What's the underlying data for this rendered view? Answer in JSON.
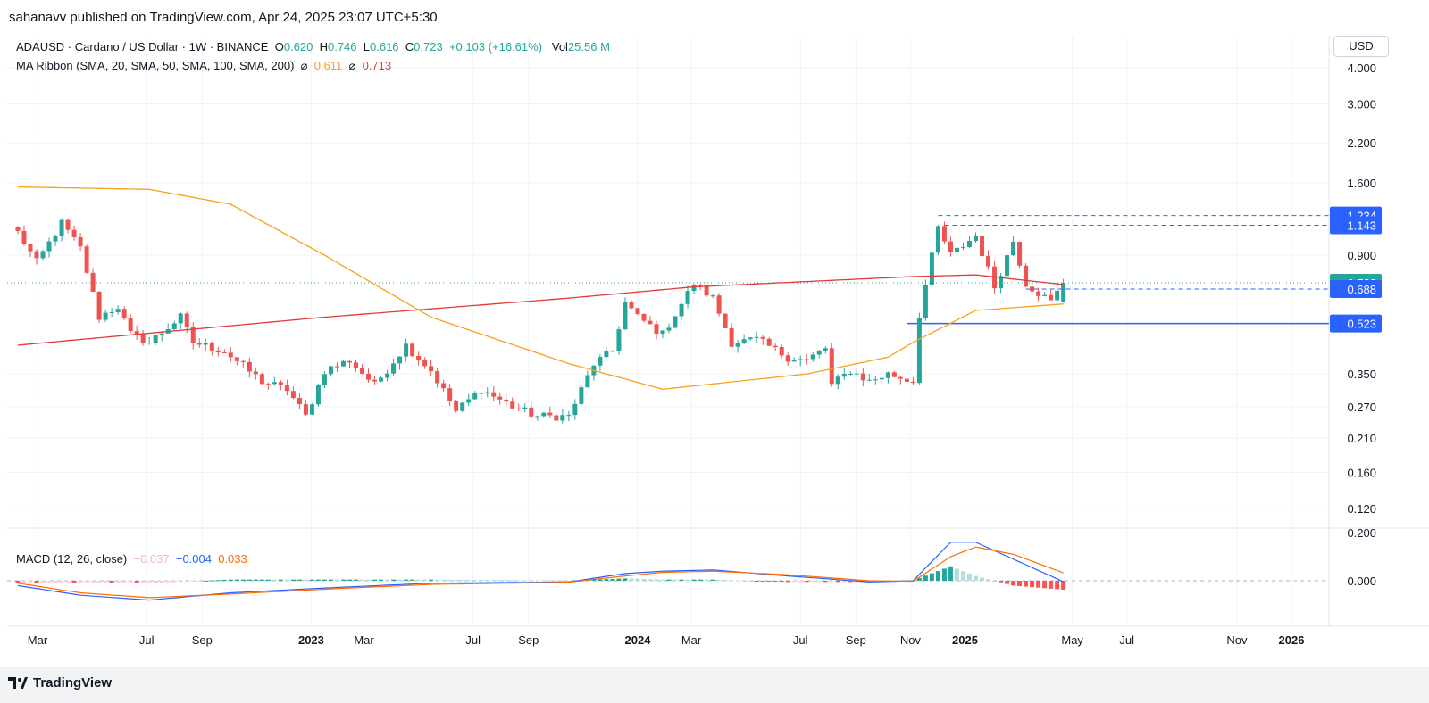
{
  "publish": {
    "text": "sahanavv published on TradingView.com, Apr 24, 2025 23:07 UTC+5:30"
  },
  "legend": {
    "symbol": "ADAUSD · Cardano / US Dollar · 1W · BINANCE",
    "o_label": "O",
    "o": "0.620",
    "h_label": "H",
    "h": "0.746",
    "l_label": "L",
    "l": "0.616",
    "c_label": "C",
    "c": "0.723",
    "change": "+0.103 (+16.61%)",
    "vol_label": "Vol",
    "vol": "25.56 M",
    "ma_title": "MA Ribbon (SMA, 20, SMA, 50, SMA, 100, SMA, 200)",
    "ma_sym": "⌀",
    "ma1": "0.611",
    "ma2": "0.713",
    "macd_title": "MACD (12, 26, close)",
    "macd_hist": "−0.037",
    "macd_line": "−0.004",
    "macd_signal": "0.033"
  },
  "currency": "USD",
  "footer": {
    "brand": "TradingView"
  },
  "colors": {
    "up": "#26a69a",
    "down": "#ef5350",
    "ma_fast": "#f7a21b",
    "ma_slow": "#e53935",
    "level": "#2962ff",
    "macd": "#2962ff",
    "signal": "#ff6d00"
  },
  "chart_data": [
    {
      "type": "candlestick",
      "scale": "log",
      "title": "ADAUSD · Cardano / US Dollar · 1W · BINANCE",
      "y_ticks": [
        "4.000",
        "3.000",
        "2.200",
        "1.600",
        "1.234",
        "1.143",
        "0.900",
        "0.723",
        "0.688",
        "0.523",
        "0.350",
        "0.270",
        "0.210",
        "0.160",
        "0.120"
      ],
      "x_ticks": [
        "Mar",
        "Jul",
        "Sep",
        "2023",
        "Mar",
        "Jul",
        "Sep",
        "2024",
        "Mar",
        "Jul",
        "Sep",
        "Nov",
        "2025",
        "May",
        "Jul",
        "Nov",
        "2026"
      ],
      "x_dates": [
        "2022-03-01",
        "2022-07-01",
        "2022-09-01",
        "2023-01-01",
        "2023-03-01",
        "2023-07-01",
        "2023-09-01",
        "2024-01-01",
        "2024-03-01",
        "2024-07-01",
        "2024-09-01",
        "2024-11-01",
        "2025-01-01",
        "2025-05-01",
        "2025-07-01",
        "2025-11-01",
        "2026-01-01"
      ],
      "levels": [
        {
          "value": 1.234,
          "style": "dashed"
        },
        {
          "value": 1.143,
          "style": "dashed"
        },
        {
          "value": 0.688,
          "style": "dashed"
        },
        {
          "value": 0.523,
          "style": "solid"
        }
      ],
      "last_price": 0.723,
      "close_anchors": [
        [
          "2022-02-07",
          1.08
        ],
        [
          "2022-02-28",
          0.85
        ],
        [
          "2022-03-28",
          1.16
        ],
        [
          "2022-04-18",
          0.95
        ],
        [
          "2022-05-09",
          0.55
        ],
        [
          "2022-05-30",
          0.6
        ],
        [
          "2022-06-13",
          0.48
        ],
        [
          "2022-07-04",
          0.45
        ],
        [
          "2022-08-08",
          0.55
        ],
        [
          "2022-08-22",
          0.45
        ],
        [
          "2022-09-26",
          0.42
        ],
        [
          "2022-11-07",
          0.33
        ],
        [
          "2022-12-05",
          0.31
        ],
        [
          "2022-12-26",
          0.25
        ],
        [
          "2023-01-16",
          0.36
        ],
        [
          "2023-02-13",
          0.39
        ],
        [
          "2023-03-13",
          0.32
        ],
        [
          "2023-04-17",
          0.44
        ],
        [
          "2023-05-15",
          0.36
        ],
        [
          "2023-06-12",
          0.26
        ],
        [
          "2023-07-10",
          0.31
        ],
        [
          "2023-08-14",
          0.27
        ],
        [
          "2023-09-11",
          0.25
        ],
        [
          "2023-10-16",
          0.25
        ],
        [
          "2023-11-13",
          0.38
        ],
        [
          "2023-12-04",
          0.42
        ],
        [
          "2023-12-18",
          0.62
        ],
        [
          "2024-01-01",
          0.55
        ],
        [
          "2024-01-29",
          0.48
        ],
        [
          "2024-03-04",
          0.72
        ],
        [
          "2024-03-25",
          0.64
        ],
        [
          "2024-04-15",
          0.45
        ],
        [
          "2024-05-13",
          0.46
        ],
        [
          "2024-06-17",
          0.4
        ],
        [
          "2024-07-08",
          0.39
        ],
        [
          "2024-07-29",
          0.43
        ],
        [
          "2024-08-05",
          0.32
        ],
        [
          "2024-08-26",
          0.36
        ],
        [
          "2024-09-16",
          0.33
        ],
        [
          "2024-10-07",
          0.35
        ],
        [
          "2024-11-04",
          0.33
        ],
        [
          "2024-11-11",
          0.56
        ],
        [
          "2024-12-02",
          1.12
        ],
        [
          "2024-12-16",
          0.9
        ],
        [
          "2025-01-13",
          1.05
        ],
        [
          "2025-02-03",
          0.7
        ],
        [
          "2025-02-24",
          1.01
        ],
        [
          "2025-03-10",
          0.72
        ],
        [
          "2025-04-07",
          0.62
        ],
        [
          "2025-04-21",
          0.723
        ]
      ],
      "ma_fast": [
        [
          "2022-02-07",
          1.55
        ],
        [
          "2022-07-04",
          1.52
        ],
        [
          "2022-10-03",
          1.35
        ],
        [
          "2023-01-16",
          0.9
        ],
        [
          "2023-05-15",
          0.55
        ],
        [
          "2023-10-16",
          0.38
        ],
        [
          "2024-01-29",
          0.31
        ],
        [
          "2024-07-08",
          0.35
        ],
        [
          "2024-10-07",
          0.4
        ],
        [
          "2024-11-04",
          0.45
        ],
        [
          "2025-01-13",
          0.58
        ],
        [
          "2025-04-21",
          0.611
        ]
      ],
      "ma_slow": [
        [
          "2022-02-07",
          0.44
        ],
        [
          "2023-01-16",
          0.55
        ],
        [
          "2023-10-16",
          0.64
        ],
        [
          "2024-03-04",
          0.7
        ],
        [
          "2024-11-04",
          0.76
        ],
        [
          "2025-01-13",
          0.77
        ],
        [
          "2025-04-21",
          0.713
        ]
      ],
      "summary": {
        "open": 0.62,
        "high": 0.746,
        "low": 0.616,
        "close": 0.723,
        "change": 0.103,
        "change_pct": 16.61,
        "volume": "25.56 M",
        "sma_fast": 0.611,
        "sma_slow": 0.713
      }
    },
    {
      "type": "bar",
      "title": "MACD (12, 26, close)",
      "y_ticks": [
        "0.200",
        "0.000"
      ],
      "ylim": [
        -0.12,
        0.2
      ],
      "macd_anchors": [
        [
          "2022-02-07",
          -0.02
        ],
        [
          "2022-04-18",
          -0.06
        ],
        [
          "2022-07-04",
          -0.08
        ],
        [
          "2022-10-03",
          -0.05
        ],
        [
          "2023-01-16",
          -0.03
        ],
        [
          "2023-05-15",
          -0.01
        ],
        [
          "2023-10-16",
          -0.005
        ],
        [
          "2023-12-18",
          0.03
        ],
        [
          "2024-01-29",
          0.04
        ],
        [
          "2024-03-25",
          0.045
        ],
        [
          "2024-06-17",
          0.02
        ],
        [
          "2024-09-16",
          -0.005
        ],
        [
          "2024-11-04",
          0.0
        ],
        [
          "2024-12-16",
          0.16
        ],
        [
          "2025-01-13",
          0.16
        ],
        [
          "2025-02-24",
          0.09
        ],
        [
          "2025-04-21",
          -0.004
        ]
      ],
      "signal_anchors": [
        [
          "2022-02-07",
          -0.01
        ],
        [
          "2022-04-18",
          -0.05
        ],
        [
          "2022-07-04",
          -0.07
        ],
        [
          "2022-10-03",
          -0.055
        ],
        [
          "2023-01-16",
          -0.035
        ],
        [
          "2023-05-15",
          -0.015
        ],
        [
          "2023-10-16",
          -0.006
        ],
        [
          "2023-12-18",
          0.02
        ],
        [
          "2024-01-29",
          0.035
        ],
        [
          "2024-03-25",
          0.04
        ],
        [
          "2024-06-17",
          0.025
        ],
        [
          "2024-09-16",
          0.0
        ],
        [
          "2024-11-04",
          -0.002
        ],
        [
          "2024-12-16",
          0.1
        ],
        [
          "2025-01-13",
          0.14
        ],
        [
          "2025-02-24",
          0.11
        ],
        [
          "2025-04-21",
          0.033
        ]
      ],
      "hist_last": -0.037
    }
  ]
}
